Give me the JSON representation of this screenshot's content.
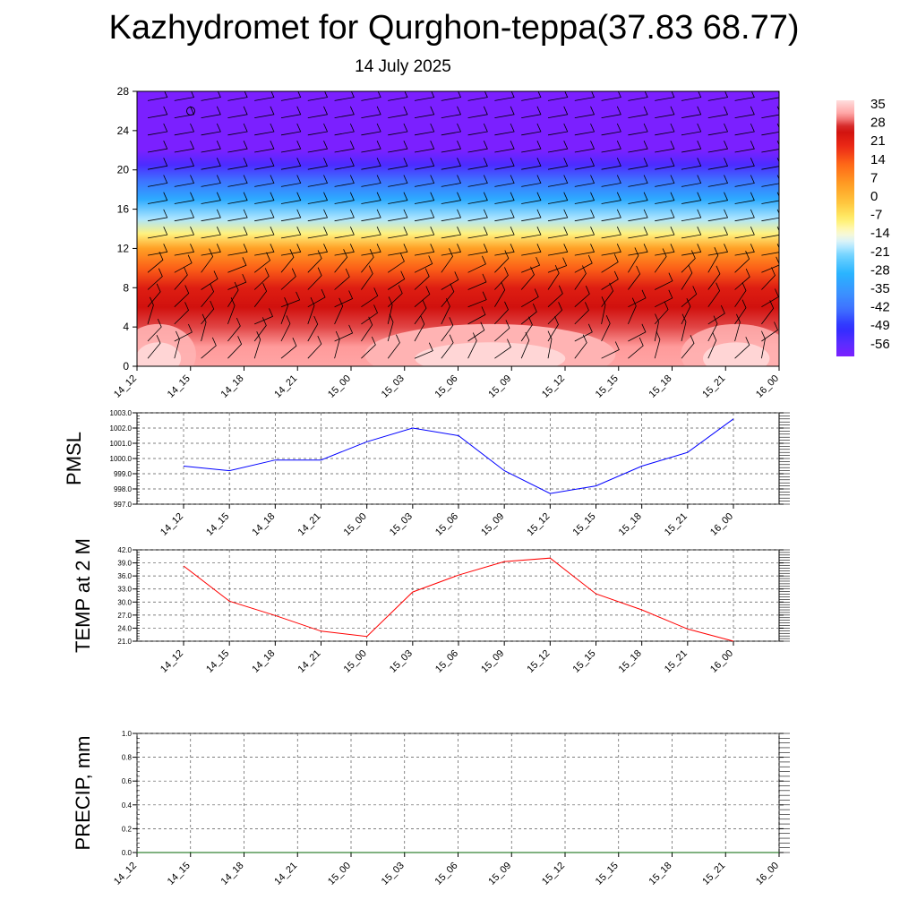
{
  "title": "Kazhydromet for Qurghon-teppa(37.83 68.77)",
  "subtitle": "14 July 2025",
  "chart_data": [
    {
      "type": "heatmap",
      "x_ticks": [
        "14_12",
        "14_15",
        "14_18",
        "14_21",
        "15_00",
        "15_03",
        "15_06",
        "15_09",
        "15_12",
        "15_15",
        "15_18",
        "15_21",
        "16_00"
      ],
      "y_ticks": [
        0,
        4,
        8,
        12,
        16,
        20,
        24,
        28
      ],
      "ylim": [
        0,
        28
      ],
      "colorbar_labels": [
        "35",
        "28",
        "21",
        "14",
        "7",
        "0",
        "-7",
        "-14",
        "-21",
        "-28",
        "-35",
        "-42",
        "-49",
        "-56"
      ],
      "colorbar_range": [
        -60,
        39
      ],
      "temperature_by_height": [
        {
          "height": 0,
          "value": 34
        },
        {
          "height": 2,
          "value": 33
        },
        {
          "height": 4,
          "value": 30
        },
        {
          "height": 6,
          "value": 27
        },
        {
          "height": 8,
          "value": 24
        },
        {
          "height": 10,
          "value": 15
        },
        {
          "height": 12,
          "value": 6
        },
        {
          "height": 13.5,
          "value": -8
        },
        {
          "height": 15,
          "value": -18
        },
        {
          "height": 17,
          "value": -30
        },
        {
          "height": 19,
          "value": -42
        },
        {
          "height": 20.5,
          "value": -53
        },
        {
          "height": 22,
          "value": -60
        },
        {
          "height": 28,
          "value": -60
        }
      ],
      "wind_barbs": "on",
      "grid": false
    },
    {
      "type": "line",
      "ylabel": "PMSL",
      "x": [
        "14_12",
        "14_15",
        "14_18",
        "14_21",
        "15_00",
        "15_03",
        "15_06",
        "15_09",
        "15_12",
        "15_15",
        "15_18",
        "15_21",
        "16_00"
      ],
      "values": [
        999.5,
        999.2,
        999.9,
        999.9,
        1001.1,
        1002.0,
        1001.5,
        999.2,
        997.7,
        998.2,
        999.5,
        1000.4,
        1002.6
      ],
      "ylim": [
        997.0,
        1003.0
      ],
      "y_ticks": [
        "997.0",
        "998.0",
        "999.0",
        "1000.0",
        "1001.0",
        "1002.0",
        "1003.0"
      ],
      "color": "#0000ff",
      "grid": true
    },
    {
      "type": "line",
      "ylabel": "TEMP at 2 M",
      "x": [
        "14_12",
        "14_15",
        "14_18",
        "14_21",
        "15_00",
        "15_03",
        "15_06",
        "15_09",
        "15_12",
        "15_15",
        "15_18",
        "15_21",
        "16_00"
      ],
      "values": [
        38.3,
        30.2,
        26.9,
        23.3,
        22.1,
        32.3,
        36.2,
        39.3,
        40.1,
        31.9,
        28.2,
        23.8,
        21.0
      ],
      "ylim": [
        21.0,
        42.0
      ],
      "y_ticks": [
        "21.0",
        "24.0",
        "27.0",
        "30.0",
        "33.0",
        "36.0",
        "39.0",
        "42.0"
      ],
      "color": "#ff0000",
      "grid": true
    },
    {
      "type": "line",
      "ylabel": "PRECIP, mm",
      "x": [
        "14_12",
        "14_15",
        "14_18",
        "14_21",
        "15_00",
        "15_03",
        "15_06",
        "15_09",
        "15_12",
        "15_15",
        "15_18",
        "15_21",
        "16_00"
      ],
      "values": [
        0,
        0,
        0,
        0,
        0,
        0,
        0,
        0,
        0,
        0,
        0,
        0,
        0
      ],
      "ylim": [
        0,
        1.0
      ],
      "y_ticks": [
        "0.0",
        "0.2",
        "0.4",
        "0.6",
        "0.8",
        "1.0"
      ],
      "color": "#006400",
      "grid": true
    }
  ]
}
